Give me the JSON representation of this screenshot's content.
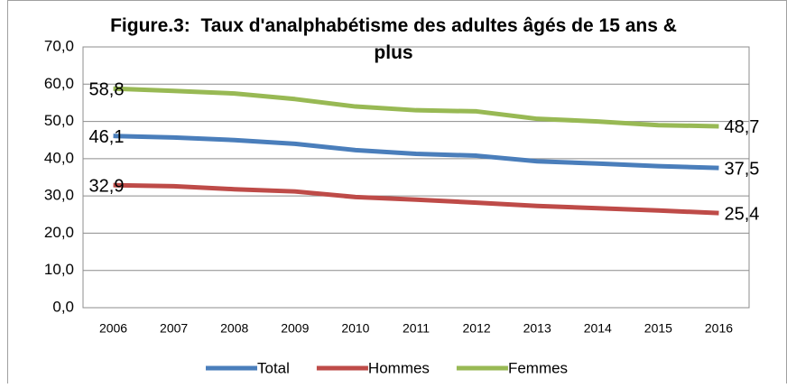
{
  "chart_data": {
    "type": "line",
    "title": "Figure.3:  Taux d'analphabétisme des adultes âgés de 15 ans & plus",
    "categories": [
      "2006",
      "2007",
      "2008",
      "2009",
      "2010",
      "2011",
      "2012",
      "2013",
      "2014",
      "2015",
      "2016"
    ],
    "series": [
      {
        "name": "Total",
        "color": "#4a7ebb",
        "values": [
          46.1,
          45.7,
          45.0,
          44.0,
          42.3,
          41.3,
          40.8,
          39.3,
          38.7,
          38.0,
          37.5
        ],
        "value_labels": [
          "46,1",
          null,
          null,
          null,
          null,
          null,
          null,
          null,
          null,
          null,
          "37,5"
        ]
      },
      {
        "name": "Hommes",
        "color": "#be4b48",
        "values": [
          32.9,
          32.6,
          31.8,
          31.2,
          29.7,
          29.0,
          28.2,
          27.3,
          26.7,
          26.1,
          25.4
        ],
        "value_labels": [
          "32,9",
          null,
          null,
          null,
          null,
          null,
          null,
          null,
          null,
          null,
          "25,4"
        ]
      },
      {
        "name": "Femmes",
        "color": "#98b954",
        "values": [
          58.8,
          58.2,
          57.5,
          56.0,
          54.0,
          53.0,
          52.7,
          50.7,
          50.0,
          49.0,
          48.7
        ],
        "value_labels": [
          "58,8",
          null,
          null,
          null,
          null,
          null,
          null,
          null,
          null,
          null,
          "48,7"
        ]
      }
    ],
    "ylim": [
      0,
      70
    ],
    "yticks": [
      {
        "value": 0,
        "label": "0,0"
      },
      {
        "value": 10,
        "label": "10,0"
      },
      {
        "value": 20,
        "label": "20,0"
      },
      {
        "value": 30,
        "label": "30,0"
      },
      {
        "value": 40,
        "label": "40,0"
      },
      {
        "value": 50,
        "label": "50,0"
      },
      {
        "value": 60,
        "label": "60,0"
      },
      {
        "value": 70,
        "label": "70,0"
      }
    ],
    "grid": true,
    "legend": "bottom"
  }
}
